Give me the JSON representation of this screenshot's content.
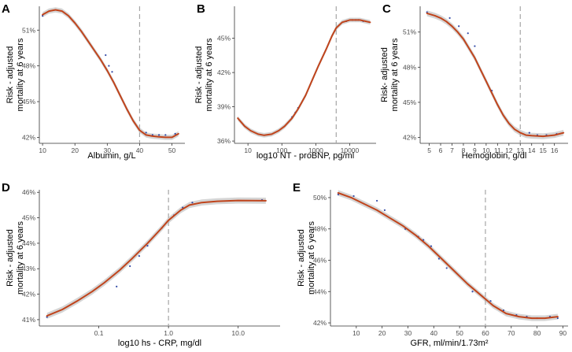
{
  "figure": {
    "accent_color": "#c0441c",
    "band_color": "#b3b3b3",
    "ref_line_color": "#a6a6a6"
  },
  "chart_data": [
    {
      "id": "A",
      "letter": "A",
      "type": "line",
      "xscale": "linear",
      "xlabel": "Albumin, g/L",
      "ylabel_lines": [
        "Risk - adjusted",
        "mortality at 6 years"
      ],
      "xlim": [
        9,
        54
      ],
      "ylim": [
        41.5,
        53
      ],
      "xticks": [
        {
          "v": 10,
          "label": "10"
        },
        {
          "v": 20,
          "label": "20"
        },
        {
          "v": 30,
          "label": "30"
        },
        {
          "v": 40,
          "label": "40"
        },
        {
          "v": 50,
          "label": "50"
        }
      ],
      "yticks": [
        {
          "v": 42,
          "label": "42%"
        },
        {
          "v": 45,
          "label": "45%"
        },
        {
          "v": 48,
          "label": "48%"
        },
        {
          "v": 51,
          "label": "51%"
        }
      ],
      "reference_x": 40,
      "curve": [
        [
          10,
          52.3
        ],
        [
          12,
          52.6
        ],
        [
          14,
          52.7
        ],
        [
          16,
          52.6
        ],
        [
          18,
          52.2
        ],
        [
          20,
          51.6
        ],
        [
          22,
          50.9
        ],
        [
          24,
          50.1
        ],
        [
          26,
          49.3
        ],
        [
          28,
          48.5
        ],
        [
          30,
          47.6
        ],
        [
          32,
          46.6
        ],
        [
          34,
          45.5
        ],
        [
          36,
          44.4
        ],
        [
          38,
          43.4
        ],
        [
          40,
          42.6
        ],
        [
          42,
          42.2
        ],
        [
          44,
          42.1
        ],
        [
          46,
          42.05
        ],
        [
          48,
          42.0
        ],
        [
          50,
          42.0
        ],
        [
          52,
          42.3
        ]
      ],
      "band_halfwidth": 0.22,
      "points": [
        [
          10,
          52.2
        ],
        [
          29.5,
          48.9
        ],
        [
          30.5,
          48.0
        ],
        [
          31.5,
          47.5
        ],
        [
          42,
          42.4
        ],
        [
          44,
          42.2
        ],
        [
          46,
          42.2
        ],
        [
          48,
          42.2
        ],
        [
          51,
          42.3
        ]
      ]
    },
    {
      "id": "B",
      "letter": "B",
      "type": "line",
      "xscale": "log10",
      "xlabel": "log10 NT - proBNP, pg/ml",
      "ylabel_lines": [
        "Risk - adjusted",
        "mortality at 6 years"
      ],
      "xlim": [
        4,
        60000
      ],
      "ylim": [
        35.8,
        47.8
      ],
      "xticks": [
        {
          "v": 10,
          "label": "10"
        },
        {
          "v": 100,
          "label": "100"
        },
        {
          "v": 1000,
          "label": "1000"
        },
        {
          "v": 10000,
          "label": "10000"
        }
      ],
      "yticks": [
        {
          "v": 36,
          "label": "36%"
        },
        {
          "v": 39,
          "label": "39%"
        },
        {
          "v": 42,
          "label": "42%"
        },
        {
          "v": 45,
          "label": "45%"
        }
      ],
      "reference_x": 4000,
      "curve": [
        [
          5,
          38.0
        ],
        [
          8,
          37.3
        ],
        [
          12,
          36.9
        ],
        [
          20,
          36.6
        ],
        [
          30,
          36.5
        ],
        [
          50,
          36.6
        ],
        [
          80,
          36.9
        ],
        [
          120,
          37.3
        ],
        [
          200,
          38.0
        ],
        [
          300,
          38.8
        ],
        [
          500,
          40.0
        ],
        [
          800,
          41.4
        ],
        [
          1200,
          42.6
        ],
        [
          2000,
          44.0
        ],
        [
          3000,
          45.2
        ],
        [
          4000,
          45.9
        ],
        [
          6000,
          46.4
        ],
        [
          10000,
          46.6
        ],
        [
          20000,
          46.6
        ],
        [
          40000,
          46.4
        ]
      ],
      "band_halfwidth": 0.2,
      "points": [
        [
          200,
          38.1
        ],
        [
          250,
          38.5
        ],
        [
          300,
          38.9
        ],
        [
          8000,
          46.5
        ],
        [
          12000,
          46.6
        ],
        [
          15000,
          46.6
        ],
        [
          18000,
          46.6
        ],
        [
          25000,
          46.5
        ]
      ]
    },
    {
      "id": "C",
      "letter": "C",
      "type": "line",
      "xscale": "linear",
      "xlabel": "Hemoglobin, g/dl",
      "ylabel_lines": [
        "Risk- adjusted",
        "mortality at 6 years"
      ],
      "xlim": [
        4.2,
        17.2
      ],
      "ylim": [
        41.5,
        53.2
      ],
      "xticks": [
        {
          "v": 5,
          "label": "5"
        },
        {
          "v": 6,
          "label": "6"
        },
        {
          "v": 7,
          "label": "7"
        },
        {
          "v": 8,
          "label": "8"
        },
        {
          "v": 9,
          "label": "9"
        },
        {
          "v": 10,
          "label": "10"
        },
        {
          "v": 11,
          "label": "11"
        },
        {
          "v": 12,
          "label": "12"
        },
        {
          "v": 13,
          "label": "13"
        },
        {
          "v": 14,
          "label": "14"
        },
        {
          "v": 15,
          "label": "15"
        },
        {
          "v": 16,
          "label": "16"
        }
      ],
      "yticks": [
        {
          "v": 42,
          "label": "42%"
        },
        {
          "v": 45,
          "label": "45%"
        },
        {
          "v": 48,
          "label": "48%"
        },
        {
          "v": 51,
          "label": "51%"
        }
      ],
      "reference_x": 13,
      "curve": [
        [
          4.8,
          52.6
        ],
        [
          5.5,
          52.4
        ],
        [
          6,
          52.2
        ],
        [
          6.5,
          51.9
        ],
        [
          7,
          51.5
        ],
        [
          7.5,
          51.0
        ],
        [
          8,
          50.4
        ],
        [
          8.5,
          49.6
        ],
        [
          9,
          48.8
        ],
        [
          9.5,
          47.8
        ],
        [
          10,
          46.8
        ],
        [
          10.5,
          45.8
        ],
        [
          11,
          44.8
        ],
        [
          11.5,
          43.9
        ],
        [
          12,
          43.2
        ],
        [
          12.5,
          42.7
        ],
        [
          13,
          42.4
        ],
        [
          13.5,
          42.2
        ],
        [
          14,
          42.15
        ],
        [
          15,
          42.1
        ],
        [
          16,
          42.2
        ],
        [
          16.8,
          42.4
        ]
      ],
      "band_halfwidth": 0.25,
      "points": [
        [
          4.8,
          52.7
        ],
        [
          6.8,
          52.2
        ],
        [
          7.6,
          51.5
        ],
        [
          8.4,
          50.9
        ],
        [
          9,
          49.8
        ],
        [
          10.5,
          46.0
        ],
        [
          13.8,
          42.4
        ],
        [
          14.5,
          42.2
        ],
        [
          15.3,
          42.2
        ],
        [
          16.2,
          42.3
        ]
      ]
    },
    {
      "id": "D",
      "letter": "D",
      "type": "line",
      "xscale": "log10",
      "xlabel": "log10 hs - CRP, mg/dl",
      "ylabel_lines": [
        "Risk - adjusted",
        "mortality at 6 years"
      ],
      "xlim": [
        0.014,
        40
      ],
      "ylim": [
        40.75,
        46.1
      ],
      "xticks": [
        {
          "v": 0.1,
          "label": "0.1"
        },
        {
          "v": 1,
          "label": "1.0"
        },
        {
          "v": 10,
          "label": "10.0"
        }
      ],
      "yticks": [
        {
          "v": 41,
          "label": "41%"
        },
        {
          "v": 42,
          "label": "42%"
        },
        {
          "v": 43,
          "label": "43%"
        },
        {
          "v": 44,
          "label": "44%"
        },
        {
          "v": 45,
          "label": "45%"
        },
        {
          "v": 46,
          "label": "46%"
        }
      ],
      "reference_x": 1,
      "curve": [
        [
          0.018,
          41.15
        ],
        [
          0.03,
          41.4
        ],
        [
          0.05,
          41.75
        ],
        [
          0.08,
          42.1
        ],
        [
          0.12,
          42.45
        ],
        [
          0.2,
          42.95
        ],
        [
          0.3,
          43.4
        ],
        [
          0.5,
          44.0
        ],
        [
          0.8,
          44.6
        ],
        [
          1.0,
          44.9
        ],
        [
          1.5,
          45.3
        ],
        [
          2,
          45.5
        ],
        [
          3,
          45.6
        ],
        [
          5,
          45.65
        ],
        [
          10,
          45.68
        ],
        [
          25,
          45.67
        ]
      ],
      "band_halfwidth": 0.12,
      "points": [
        [
          0.018,
          41.1
        ],
        [
          0.18,
          42.3
        ],
        [
          0.28,
          43.1
        ],
        [
          0.38,
          43.5
        ],
        [
          0.5,
          43.9
        ],
        [
          0.8,
          44.6
        ],
        [
          1.2,
          45.1
        ],
        [
          1.6,
          45.4
        ],
        [
          2.2,
          45.6
        ],
        [
          22,
          45.7
        ]
      ]
    },
    {
      "id": "E",
      "letter": "E",
      "type": "line",
      "xscale": "linear",
      "xlabel": "GFR, ml/min/1.73m²",
      "ylabel_lines": [
        "Risk - adjusted",
        "mortality at 6 years"
      ],
      "xlim": [
        0,
        92
      ],
      "ylim": [
        41.8,
        50.5
      ],
      "xticks": [
        {
          "v": 10,
          "label": "10"
        },
        {
          "v": 20,
          "label": "20"
        },
        {
          "v": 30,
          "label": "30"
        },
        {
          "v": 40,
          "label": "40"
        },
        {
          "v": 50,
          "label": "50"
        },
        {
          "v": 60,
          "label": "60"
        },
        {
          "v": 70,
          "label": "70"
        },
        {
          "v": 80,
          "label": "80"
        },
        {
          "v": 90,
          "label": "90"
        }
      ],
      "yticks": [
        {
          "v": 42,
          "label": "42%"
        },
        {
          "v": 44,
          "label": "44%"
        },
        {
          "v": 46,
          "label": "46%"
        },
        {
          "v": 48,
          "label": "48%"
        },
        {
          "v": 50,
          "label": "50%"
        }
      ],
      "reference_x": 60,
      "curve": [
        [
          3,
          50.3
        ],
        [
          8,
          50.0
        ],
        [
          13,
          49.6
        ],
        [
          18,
          49.2
        ],
        [
          23,
          48.7
        ],
        [
          28,
          48.2
        ],
        [
          33,
          47.6
        ],
        [
          38,
          46.9
        ],
        [
          43,
          46.1
        ],
        [
          48,
          45.3
        ],
        [
          53,
          44.5
        ],
        [
          58,
          43.8
        ],
        [
          63,
          43.1
        ],
        [
          68,
          42.6
        ],
        [
          73,
          42.4
        ],
        [
          78,
          42.3
        ],
        [
          83,
          42.3
        ],
        [
          88,
          42.4
        ]
      ],
      "band_halfwidth": 0.18,
      "points": [
        [
          3,
          50.2
        ],
        [
          9,
          50.1
        ],
        [
          18,
          49.8
        ],
        [
          21,
          49.2
        ],
        [
          29,
          48.0
        ],
        [
          34,
          47.5
        ],
        [
          36,
          47.3
        ],
        [
          39,
          46.9
        ],
        [
          42,
          46.1
        ],
        [
          45,
          45.5
        ],
        [
          55,
          44.0
        ],
        [
          62,
          43.4
        ],
        [
          67,
          42.8
        ],
        [
          72,
          42.5
        ],
        [
          76,
          42.4
        ],
        [
          80,
          42.3
        ],
        [
          85,
          42.4
        ],
        [
          88,
          42.3
        ]
      ]
    }
  ]
}
